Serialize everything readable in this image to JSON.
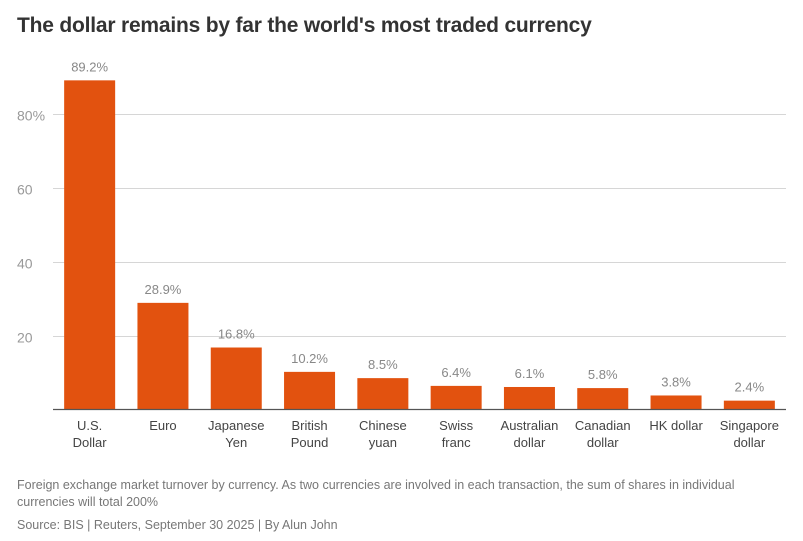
{
  "title": "The dollar remains by far the world's most traded currency",
  "note": "Foreign exchange market turnover by currency. As two currencies are involved in each transaction, the sum of shares in individual currencies will total 200%",
  "source": "Source: BIS | Reuters, September 30 2025 | By Alun John",
  "colors": {
    "bar": "#e2520f",
    "grid": "#d6d6d6"
  },
  "chart_data": {
    "type": "bar",
    "categories": [
      [
        "U.S.",
        "Dollar"
      ],
      [
        "Euro"
      ],
      [
        "Japanese",
        "Yen"
      ],
      [
        "British",
        "Pound"
      ],
      [
        "Chinese",
        "yuan"
      ],
      [
        "Swiss",
        "franc"
      ],
      [
        "Australian",
        "dollar"
      ],
      [
        "Canadian",
        "dollar"
      ],
      [
        "HK dollar"
      ],
      [
        "Singapore",
        "dollar"
      ]
    ],
    "values": [
      89.2,
      28.9,
      16.8,
      10.2,
      8.5,
      6.4,
      6.1,
      5.8,
      3.8,
      2.4
    ],
    "value_labels": [
      "89.2%",
      "28.9%",
      "16.8%",
      "10.2%",
      "8.5%",
      "6.4%",
      "6.1%",
      "5.8%",
      "3.8%",
      "2.4%"
    ],
    "yticks": [
      {
        "value": 20,
        "label": "20"
      },
      {
        "value": 40,
        "label": "40"
      },
      {
        "value": 60,
        "label": "60"
      },
      {
        "value": 80,
        "label": "80%"
      }
    ],
    "ylim": [
      0,
      89.2
    ],
    "grid": true
  }
}
